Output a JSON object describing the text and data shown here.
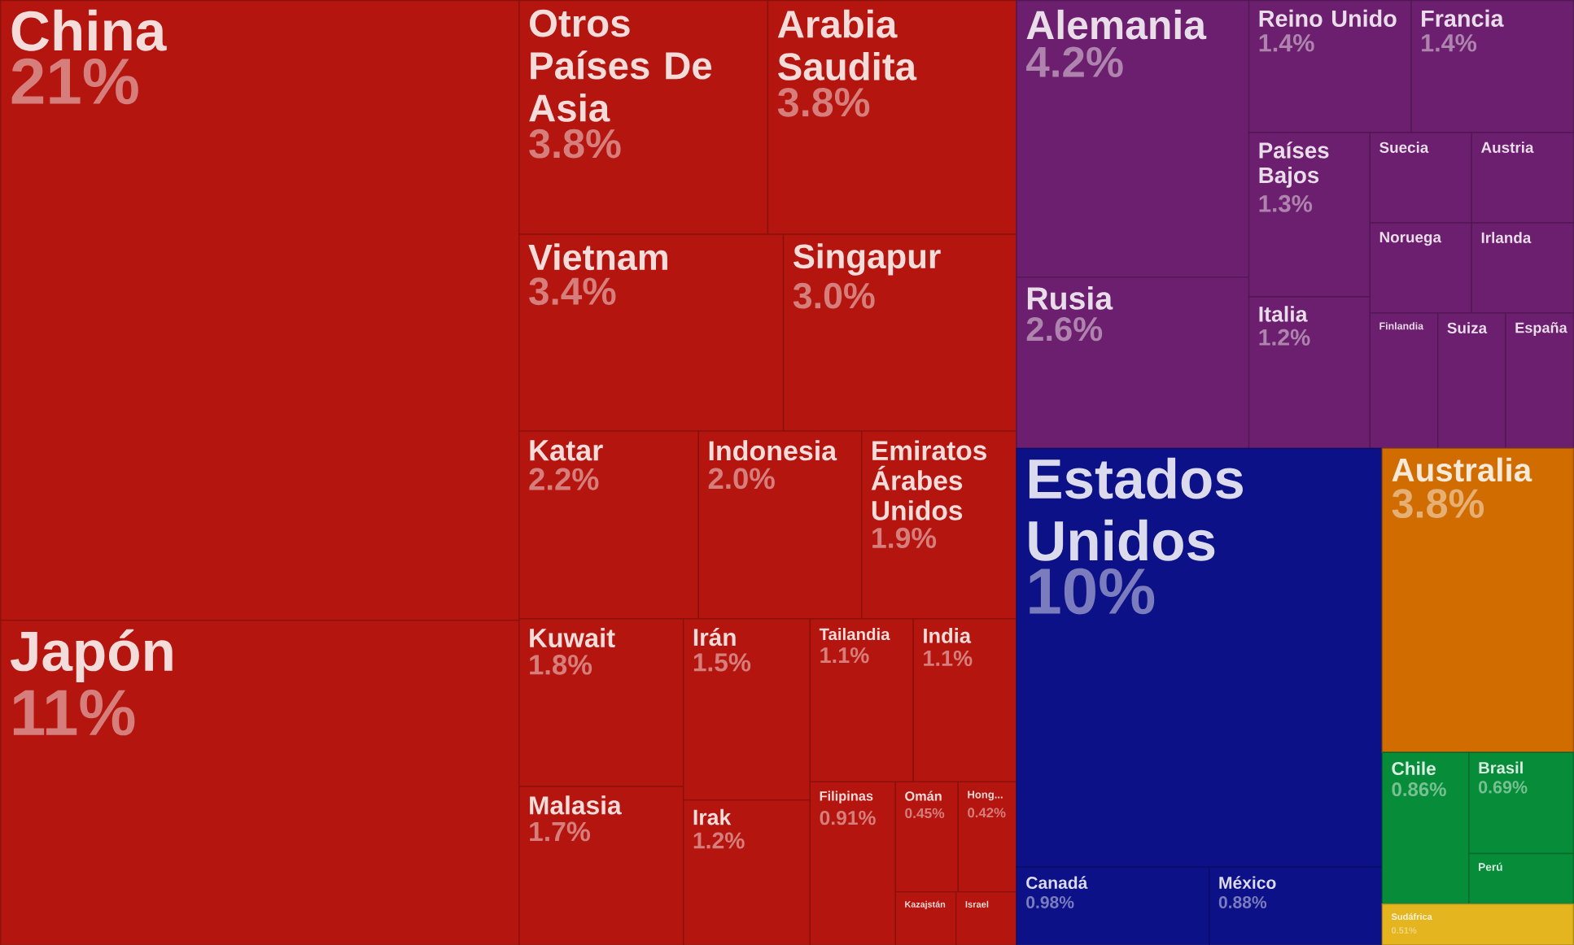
{
  "chart_data": {
    "type": "other",
    "categories": [
      "China",
      "Japón",
      "Otros Países De Asia",
      "Arabia Saudita",
      "Vietnam",
      "Singapur",
      "Katar",
      "Indonesia",
      "Emiratos Árabes Unidos",
      "Kuwait",
      "Malasia",
      "Irán",
      "Irak",
      "Tailandia",
      "India",
      "Filipinas",
      "Omán",
      "Hong...",
      "Kazajstán",
      "Israel",
      "Alemania",
      "Rusia",
      "Reino Unido",
      "Francia",
      "Países Bajos",
      "Italia",
      "Suecia",
      "Austria",
      "Noruega",
      "Irlanda",
      "Finlandia",
      "Suiza",
      "España",
      "Estados Unidos",
      "Canadá",
      "México",
      "Australia",
      "Chile",
      "Brasil",
      "Perú",
      "Sudáfrica"
    ],
    "values": [
      21,
      11,
      3.8,
      3.8,
      3.4,
      3.0,
      2.2,
      2.0,
      1.9,
      1.8,
      1.7,
      1.5,
      1.2,
      1.1,
      1.1,
      0.91,
      0.45,
      0.42,
      null,
      null,
      4.2,
      2.6,
      1.4,
      1.4,
      1.3,
      1.2,
      null,
      null,
      null,
      null,
      null,
      null,
      null,
      10,
      0.98,
      0.88,
      3.8,
      0.86,
      0.69,
      null,
      0.51
    ],
    "value_labels": [
      "21%",
      "11%",
      "3.8%",
      "3.8%",
      "3.4%",
      "3.0%",
      "2.2%",
      "2.0%",
      "1.9%",
      "1.8%",
      "1.7%",
      "1.5%",
      "1.2%",
      "1.1%",
      "1.1%",
      "0.91%",
      "0.45%",
      "0.42%",
      null,
      null,
      "4.2%",
      "2.6%",
      "1.4%",
      "1.4%",
      "1.3%",
      "1.2%",
      null,
      null,
      null,
      null,
      null,
      null,
      null,
      "10%",
      "0.98%",
      "0.88%",
      "3.8%",
      "0.86%",
      "0.69%",
      null,
      "0.51%"
    ],
    "colors": [
      "#b5150f",
      "#b5150f",
      "#b5150f",
      "#b5150f",
      "#b5150f",
      "#b5150f",
      "#b5150f",
      "#b5150f",
      "#b5150f",
      "#b5150f",
      "#b5150f",
      "#b5150f",
      "#b5150f",
      "#b5150f",
      "#b5150f",
      "#b5150f",
      "#b5150f",
      "#b5150f",
      "#b5150f",
      "#b5150f",
      "#6c1f6e",
      "#6c1f6e",
      "#6c1f6e",
      "#6c1f6e",
      "#6c1f6e",
      "#6c1f6e",
      "#6c1f6e",
      "#6c1f6e",
      "#6c1f6e",
      "#6c1f6e",
      "#6c1f6e",
      "#6c1f6e",
      "#6c1f6e",
      "#0d1187",
      "#0d1187",
      "#0d1187",
      "#d16d00",
      "#078c39",
      "#078c39",
      "#078c39",
      "#e4b51f"
    ]
  }
}
